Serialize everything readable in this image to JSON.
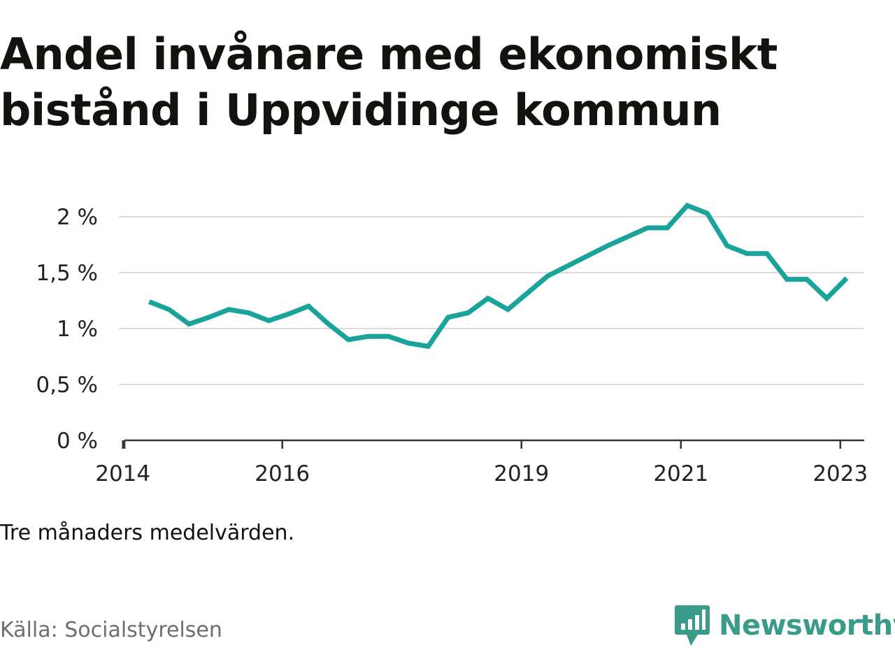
{
  "title": "Andel invånare med ekonomiskt bistånd i Uppvidinge kommun",
  "note": "Tre månaders medelvärden.",
  "source": "Källa: Socialstyrelsen",
  "brand": {
    "name": "Newsworthy",
    "icon": "newsworthy-logo-icon",
    "color": "#3a9b8a"
  },
  "chart_data": {
    "type": "line",
    "title": "Andel invånare med ekonomiskt bistånd i Uppvidinge kommun",
    "xlabel": "",
    "ylabel": "",
    "xlim": [
      2013.95,
      2023.3
    ],
    "ylim": [
      0,
      2
    ],
    "grid": true,
    "legend": "none",
    "color": "#1aa39a",
    "x_ticks": [
      {
        "value": 2014,
        "label": "2014"
      },
      {
        "value": 2016,
        "label": "2016"
      },
      {
        "value": 2019,
        "label": "2019"
      },
      {
        "value": 2021,
        "label": "2021"
      },
      {
        "value": 2023,
        "label": "2023"
      }
    ],
    "y_ticks": [
      {
        "value": 0,
        "label": "0 %"
      },
      {
        "value": 0.5,
        "label": "0,5 %"
      },
      {
        "value": 1,
        "label": "1 %"
      },
      {
        "value": 1.5,
        "label": "1,5 %"
      },
      {
        "value": 2,
        "label": "2 %"
      }
    ],
    "series": [
      {
        "x": [
          2014.33,
          2014.58,
          2014.83,
          2015.08,
          2015.33,
          2015.58,
          2015.83,
          2016.08,
          2016.33,
          2016.58,
          2016.83,
          2017.08,
          2017.33,
          2017.58,
          2017.83,
          2018.08,
          2018.33,
          2018.58,
          2018.83,
          2019.08,
          2019.33,
          2019.58,
          2019.83,
          2020.08,
          2020.33,
          2020.58,
          2020.83,
          2021.08,
          2021.33,
          2021.58,
          2021.83,
          2022.08,
          2022.33,
          2022.58,
          2022.83,
          2023.08
        ],
        "y": [
          1.24,
          1.17,
          1.04,
          1.1,
          1.17,
          1.14,
          1.07,
          1.13,
          1.2,
          1.04,
          0.9,
          0.93,
          0.93,
          0.87,
          0.84,
          1.1,
          1.14,
          1.27,
          1.17,
          1.32,
          1.47,
          1.56,
          1.65,
          1.74,
          1.82,
          1.9,
          1.9,
          2.1,
          2.03,
          1.74,
          1.67,
          1.67,
          1.44,
          1.44,
          1.27,
          1.45
        ]
      }
    ]
  }
}
